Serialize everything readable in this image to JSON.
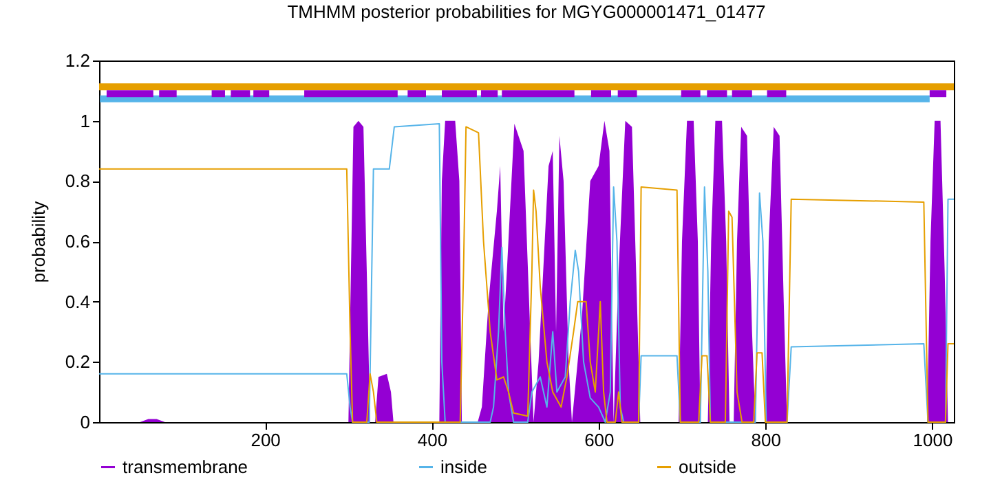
{
  "chart_data": {
    "type": "line",
    "title": "TMHMM posterior probabilities for MGYG000001471_01477",
    "ylabel": "probability",
    "xlim": [
      1,
      1026
    ],
    "xticks": [
      200,
      400,
      600,
      800,
      1000
    ],
    "ylim": [
      0,
      1.2
    ],
    "yticks": [
      0,
      0.2,
      0.4,
      0.6,
      0.8,
      1,
      1.2
    ],
    "legend": "bottom",
    "grid": false,
    "series": [
      {
        "name": "transmembrane",
        "type": "area",
        "color": "#9400d3",
        "x": [
          1,
          50,
          60,
          70,
          80,
          300,
          303,
          306,
          312,
          318,
          322,
          326,
          332,
          336,
          346,
          351,
          354,
          409,
          412,
          416,
          428,
          433,
          436,
          455,
          460,
          468,
          478,
          482,
          486,
          490,
          499,
          510,
          518,
          522,
          528,
          540,
          545,
          549,
          553,
          558,
          564,
          568,
          580,
          590,
          600,
          607,
          613,
          618,
          624,
          632,
          640,
          645,
          650,
          696,
          700,
          706,
          714,
          719,
          722,
          731,
          735,
          740,
          748,
          753,
          757,
          762,
          766,
          771,
          778,
          784,
          788,
          800,
          804,
          810,
          817,
          822,
          826,
          994,
          998,
          1003,
          1010,
          1015,
          1019,
          1026
        ],
        "values": [
          0,
          0,
          0.01,
          0.01,
          0,
          0,
          0.5,
          0.98,
          1,
          0.98,
          0.5,
          0,
          0,
          0.15,
          0.16,
          0.1,
          0,
          0,
          0.8,
          1,
          1,
          0.8,
          0,
          0,
          0.05,
          0.4,
          0.7,
          0.85,
          0.3,
          0.5,
          0.99,
          0.9,
          0.3,
          0,
          0.2,
          0.85,
          0.9,
          0.3,
          0.95,
          0.8,
          0.2,
          0,
          0.35,
          0.8,
          0.85,
          1,
          0.9,
          0,
          0.5,
          1,
          0.98,
          0.5,
          0,
          0,
          0.6,
          1,
          1,
          0.6,
          0,
          0,
          0.6,
          1,
          1,
          0.6,
          0,
          0,
          0.6,
          0.98,
          0.95,
          0.3,
          0,
          0,
          0.6,
          0.98,
          0.95,
          0.4,
          0,
          0,
          0.6,
          1,
          1,
          0.5,
          0,
          0
        ]
      },
      {
        "name": "inside",
        "color": "#56b4e9",
        "x": [
          1,
          298,
          302,
          305,
          325,
          330,
          349,
          355,
          409,
          412,
          416,
          470,
          474,
          480,
          484,
          488,
          492,
          498,
          515,
          520,
          530,
          538,
          545,
          550,
          560,
          566,
          572,
          576,
          582,
          590,
          600,
          608,
          614,
          618,
          622,
          626,
          630,
          648,
          651,
          694,
          698,
          722,
          727,
          731,
          734,
          788,
          793,
          797,
          801,
          826,
          831,
          990,
          995,
          1016,
          1019,
          1026
        ],
        "values": [
          0.16,
          0.16,
          0.05,
          0,
          0,
          0.84,
          0.84,
          0.98,
          0.99,
          0.2,
          0,
          0,
          0.05,
          0.3,
          0.58,
          0.3,
          0.1,
          0,
          0,
          0.1,
          0.15,
          0.05,
          0.3,
          0.1,
          0.15,
          0.4,
          0.57,
          0.5,
          0.2,
          0.08,
          0.05,
          0,
          0.1,
          0.78,
          0.6,
          0.05,
          0,
          0,
          0.22,
          0.22,
          0,
          0,
          0.78,
          0.5,
          0,
          0,
          0.76,
          0.6,
          0,
          0,
          0.25,
          0.26,
          0,
          0,
          0.74,
          0.74
        ]
      },
      {
        "name": "outside",
        "color": "#e69f00",
        "x": [
          1,
          298,
          302,
          305,
          322,
          326,
          330,
          334,
          434,
          438,
          441,
          456,
          462,
          470,
          478,
          486,
          492,
          498,
          515,
          520,
          522,
          525,
          530,
          538,
          545,
          555,
          562,
          570,
          575,
          585,
          590,
          596,
          602,
          606,
          610,
          620,
          624,
          628,
          648,
          651,
          694,
          698,
          720,
          724,
          730,
          734,
          752,
          756,
          760,
          766,
          772,
          786,
          790,
          796,
          800,
          826,
          831,
          990,
          995,
          1016,
          1019,
          1026
        ],
        "values": [
          0.84,
          0.84,
          0.3,
          0,
          0,
          0.16,
          0.1,
          0,
          0,
          0.5,
          0.98,
          0.96,
          0.6,
          0.3,
          0.14,
          0.15,
          0.1,
          0.03,
          0.02,
          0.5,
          0.77,
          0.7,
          0.45,
          0.2,
          0.1,
          0.05,
          0.15,
          0.3,
          0.4,
          0.4,
          0.2,
          0.1,
          0.4,
          0.1,
          0,
          0,
          0.1,
          0,
          0,
          0.78,
          0.77,
          0,
          0,
          0.22,
          0.22,
          0,
          0,
          0.7,
          0.68,
          0.1,
          0,
          0,
          0.23,
          0.23,
          0,
          0,
          0.74,
          0.73,
          0,
          0,
          0.26,
          0.26
        ]
      },
      {
        "color": "#e69f00",
        "x": [
          1,
          1026
        ],
        "values": [
          1.113,
          1.113
        ]
      },
      {
        "color": "#56b4e9",
        "x": [
          2,
          997
        ],
        "values": [
          1.073,
          1.073
        ]
      },
      {
        "color": "#9400d3",
        "x": [
          10,
          66
        ],
        "values": [
          1.09,
          1.09
        ]
      },
      {
        "color": "#9400d3",
        "x": [
          73,
          94
        ],
        "values": [
          1.09,
          1.09
        ]
      },
      {
        "color": "#9400d3",
        "x": [
          136,
          152
        ],
        "values": [
          1.09,
          1.09
        ]
      },
      {
        "color": "#9400d3",
        "x": [
          159,
          182
        ],
        "values": [
          1.09,
          1.09
        ]
      },
      {
        "color": "#9400d3",
        "x": [
          186,
          205
        ],
        "values": [
          1.09,
          1.09
        ]
      },
      {
        "color": "#9400d3",
        "x": [
          247,
          359
        ],
        "values": [
          1.09,
          1.09
        ]
      },
      {
        "color": "#9400d3",
        "x": [
          371,
          393
        ],
        "values": [
          1.09,
          1.09
        ]
      },
      {
        "color": "#9400d3",
        "x": [
          412,
          454
        ],
        "values": [
          1.09,
          1.09
        ]
      },
      {
        "color": "#9400d3",
        "x": [
          459,
          479
        ],
        "values": [
          1.09,
          1.09
        ]
      },
      {
        "color": "#9400d3",
        "x": [
          484,
          571
        ],
        "values": [
          1.09,
          1.09
        ]
      },
      {
        "color": "#9400d3",
        "x": [
          591,
          615
        ],
        "values": [
          1.09,
          1.09
        ]
      },
      {
        "color": "#9400d3",
        "x": [
          623,
          646
        ],
        "values": [
          1.09,
          1.09
        ]
      },
      {
        "color": "#9400d3",
        "x": [
          699,
          722
        ],
        "values": [
          1.09,
          1.09
        ]
      },
      {
        "color": "#9400d3",
        "x": [
          730,
          754
        ],
        "values": [
          1.09,
          1.09
        ]
      },
      {
        "color": "#9400d3",
        "x": [
          760,
          784
        ],
        "values": [
          1.09,
          1.09
        ]
      },
      {
        "color": "#9400d3",
        "x": [
          802,
          825
        ],
        "values": [
          1.09,
          1.09
        ]
      },
      {
        "color": "#9400d3",
        "x": [
          997,
          1017
        ],
        "values": [
          1.09,
          1.09
        ]
      }
    ]
  }
}
